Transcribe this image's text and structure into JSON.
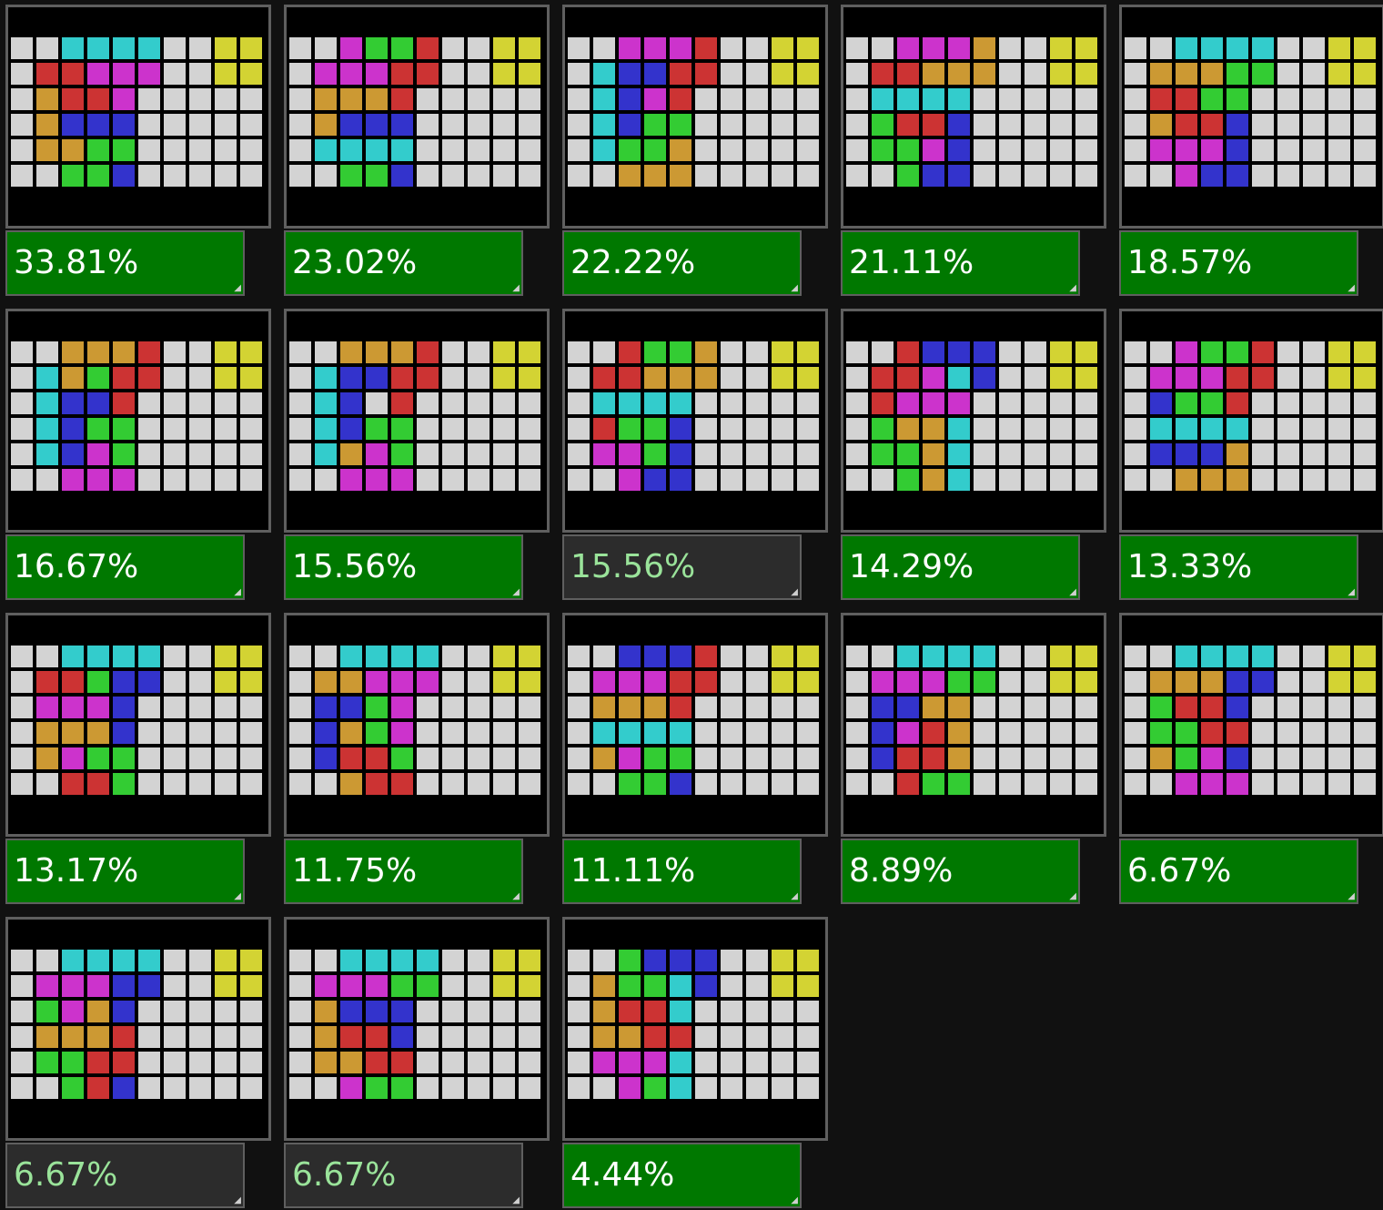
{
  "colors": {
    "B": "#000000",
    "W": "#d3d3d3",
    "C": "#33cccc",
    "Y": "#d3d333",
    "R": "#cc3333",
    "M": "#cc33cc",
    "O": "#cc9933",
    "D": "#3333cc",
    "G": "#33cc33"
  },
  "boards": [
    {
      "label": "33.81%",
      "active": true,
      "rows": [
        "BBBBBBBBBB",
        "WWCCCCWWYY",
        "WRRMMMWWYY",
        "WORRMWWWWW",
        "WODDDWWWWW",
        "WOOGGWWWWW",
        "WWGGDWWWWW",
        "BBBBBBBBBB"
      ]
    },
    {
      "label": "23.02%",
      "active": true,
      "rows": [
        "BBBBBBBBBB",
        "WWMGGRWWYY",
        "WMMMRRWWYY",
        "WOOORWWWWW",
        "WODDDWWWWW",
        "WCCCCWWWWW",
        "WWGGDWWWWW",
        "BBBBBBBBBB"
      ]
    },
    {
      "label": "22.22%",
      "active": true,
      "rows": [
        "BBBBBBBBBB",
        "WWMMMRWWYY",
        "WCDDRRWWYY",
        "WCDMRWWWWW",
        "WCDGGWWWWW",
        "WCGGOWWWWW",
        "WWOOOWWWWW",
        "BBBBBBBBBB"
      ]
    },
    {
      "label": "21.11%",
      "active": true,
      "rows": [
        "BBBBBBBBBB",
        "WWMMMOWWYY",
        "WRROOOWWYY",
        "WCCCCWWWWW",
        "WGRRDWWWWW",
        "WGGMDWWWWW",
        "WWGDDWWWWW",
        "BBBBBBBBBB"
      ]
    },
    {
      "label": "18.57%",
      "active": true,
      "rows": [
        "BBBBBBBBBB",
        "WWCCCCWWYY",
        "WOOOGGWWYY",
        "WRRGGWWWWW",
        "WORRDWWWWW",
        "WMMMDWWWWW",
        "WWMDDWWWWW",
        "BBBBBBBBBB"
      ]
    },
    {
      "label": "16.67%",
      "active": true,
      "rows": [
        "BBBBBBBBBB",
        "WWOOORWWYY",
        "WCOGRRWWYY",
        "WCDDRWWWWW",
        "WCDGGWWWWW",
        "WCDMGWWWWW",
        "WWMMMWWWWW",
        "BBBBBBBBBB"
      ]
    },
    {
      "label": "15.56%",
      "active": true,
      "rows": [
        "BBBBBBBBBB",
        "WWOOORWWYY",
        "WCDDRRWWYY",
        "WCDWRWWWWW",
        "WCDGGWWWWW",
        "WCOMGWWWWW",
        "WWMMMWWWWW",
        "BBBBBBBBBB"
      ]
    },
    {
      "label": "15.56%",
      "active": false,
      "rows": [
        "BBBBBBBBBB",
        "WWRGGOWWYY",
        "WRROOOWWYY",
        "WCCCCWWWWW",
        "WRGGDWWWWW",
        "WMMGDWWWWW",
        "WWMDDWWWWW",
        "BBBBBBBBBB"
      ]
    },
    {
      "label": "14.29%",
      "active": true,
      "rows": [
        "BBBBBBBBBB",
        "WWRDDDWWYY",
        "WRRMCDWWYY",
        "WRMMMWWWWW",
        "WGOOCWWWWW",
        "WGGOCWWWWW",
        "WWGOCWWWWW",
        "BBBBBBBBBB"
      ]
    },
    {
      "label": "13.33%",
      "active": true,
      "rows": [
        "BBBBBBBBBB",
        "WWMGGRWWYY",
        "WMMMRRWWYY",
        "WDGGRWWWWW",
        "WCCCCWWWWW",
        "WDDDOWWWWW",
        "WWOOOWWWWW",
        "BBBBBBBBBB"
      ]
    },
    {
      "label": "13.17%",
      "active": true,
      "rows": [
        "BBBBBBBBBB",
        "WWCCCCWWYY",
        "WRRGDDWWYY",
        "WMMMDWWWWW",
        "WOOODWWWWW",
        "WOMGGWWWWW",
        "WWRRGWWWWW",
        "BBBBBBBBBB"
      ]
    },
    {
      "label": "11.75%",
      "active": true,
      "rows": [
        "BBBBBBBBBB",
        "WWCCCCWWYY",
        "WOOMMMWWYY",
        "WDDGMWWWWW",
        "WDOGMWWWWW",
        "WDRRGWWWWW",
        "WWORRWWWWW",
        "BBBBBBBBBB"
      ]
    },
    {
      "label": "11.11%",
      "active": true,
      "rows": [
        "BBBBBBBBBB",
        "WWDDDRWWYY",
        "WMMMRRWWYY",
        "WOOORWWWWW",
        "WCCCCWWWWW",
        "WOMGGWWWWW",
        "WWGGDWWWWW",
        "BBBBBBBBBB"
      ]
    },
    {
      "label": "8.89%",
      "active": true,
      "rows": [
        "BBBBBBBBBB",
        "WWCCCCWWYY",
        "WMMMGGWWYY",
        "WDDOOWWWWW",
        "WDMROWWWWW",
        "WDRROWWWWW",
        "WWRGGWWWWW",
        "BBBBBBBBBB"
      ]
    },
    {
      "label": "6.67%",
      "active": true,
      "rows": [
        "BBBBBBBBBB",
        "WWCCCCWWYY",
        "WOOODDWWYY",
        "WGRRDWWWWW",
        "WGGRRWWWWW",
        "WOGMDWWWWW",
        "WWMMMWWWWW",
        "BBBBBBBBBB"
      ]
    },
    {
      "label": "6.67%",
      "active": false,
      "rows": [
        "BBBBBBBBBB",
        "WWCCCCWWYY",
        "WMMMDDWWYY",
        "WGMODWWWWW",
        "WOOORWWWWW",
        "WGGRRWWWWW",
        "WWGRDWWWWW",
        "BBBBBBBBBB"
      ]
    },
    {
      "label": "6.67%",
      "active": false,
      "rows": [
        "BBBBBBBBBB",
        "WWCCCCWWYY",
        "WMMMGGWWYY",
        "WODDDWWWWW",
        "WORRDWWWWW",
        "WOORRWWWWW",
        "WWMGGWWWWW",
        "BBBBBBBBBB"
      ]
    },
    {
      "label": "4.44%",
      "active": true,
      "rows": [
        "BBBBBBBBBB",
        "WWGDDDWWYY",
        "WOGGCDWWYY",
        "WORRCWWWWW",
        "WOORRWWWWW",
        "WMMMCWWWWW",
        "WWMGCWWWWW",
        "BBBBBBBBBB"
      ]
    }
  ]
}
